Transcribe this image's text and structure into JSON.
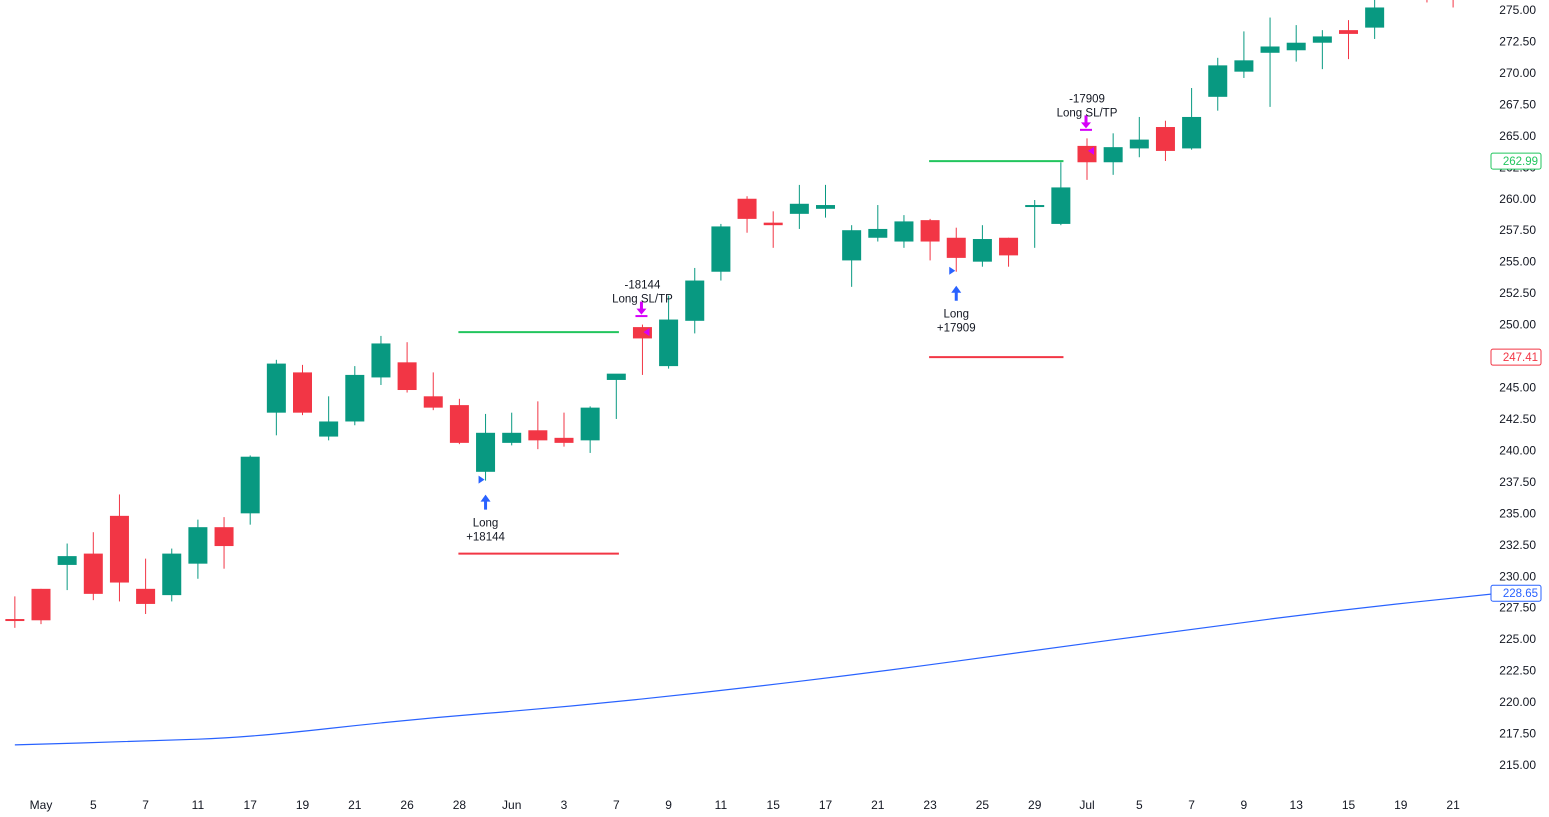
{
  "chart_data": {
    "type": "candlestick",
    "y_axis": {
      "range": [
        213.3,
        276.2
      ],
      "ticks": [
        "215.00",
        "217.50",
        "220.00",
        "222.50",
        "225.00",
        "227.50",
        "230.00",
        "232.50",
        "235.00",
        "237.50",
        "240.00",
        "242.50",
        "245.00",
        "247.50",
        "250.00",
        "252.50",
        "255.00",
        "257.50",
        "260.00",
        "262.50",
        "265.00",
        "267.50",
        "270.00",
        "272.50",
        "275.00"
      ]
    },
    "x_axis": {
      "labels": [
        {
          "i": 0,
          "text": "May"
        },
        {
          "i": 2,
          "text": "5"
        },
        {
          "i": 4,
          "text": "7"
        },
        {
          "i": 6,
          "text": "11"
        },
        {
          "i": 8,
          "text": "17"
        },
        {
          "i": 10,
          "text": "19"
        },
        {
          "i": 12,
          "text": "21"
        },
        {
          "i": 14,
          "text": "26"
        },
        {
          "i": 16,
          "text": "28"
        },
        {
          "i": 18,
          "text": "Jun"
        },
        {
          "i": 20,
          "text": "3"
        },
        {
          "i": 22,
          "text": "7"
        },
        {
          "i": 24,
          "text": "9"
        },
        {
          "i": 26,
          "text": "11"
        },
        {
          "i": 28,
          "text": "15"
        },
        {
          "i": 30,
          "text": "17"
        },
        {
          "i": 32,
          "text": "21"
        },
        {
          "i": 34,
          "text": "23"
        },
        {
          "i": 36,
          "text": "25"
        },
        {
          "i": 38,
          "text": "29"
        },
        {
          "i": 40,
          "text": "Jul"
        },
        {
          "i": 42,
          "text": "5"
        },
        {
          "i": 44,
          "text": "7"
        },
        {
          "i": 46,
          "text": "9"
        },
        {
          "i": 48,
          "text": "13"
        },
        {
          "i": 50,
          "text": "15"
        },
        {
          "i": 52,
          "text": "19"
        },
        {
          "i": 54,
          "text": "21"
        }
      ]
    },
    "candles": [
      {
        "i": -1,
        "o": 226.6,
        "h": 228.4,
        "l": 225.9,
        "c": 226.5
      },
      {
        "i": 0,
        "o": 229.0,
        "h": 229.0,
        "l": 226.2,
        "c": 226.5
      },
      {
        "i": 1,
        "o": 230.9,
        "h": 232.6,
        "l": 228.9,
        "c": 231.6
      },
      {
        "i": 2,
        "o": 231.8,
        "h": 233.5,
        "l": 228.1,
        "c": 228.6
      },
      {
        "i": 3,
        "o": 234.8,
        "h": 236.5,
        "l": 228.0,
        "c": 229.5
      },
      {
        "i": 4,
        "o": 229.0,
        "h": 231.4,
        "l": 227.0,
        "c": 227.8
      },
      {
        "i": 5,
        "o": 228.5,
        "h": 232.2,
        "l": 228.0,
        "c": 231.8
      },
      {
        "i": 6,
        "o": 231.0,
        "h": 234.5,
        "l": 229.8,
        "c": 233.9
      },
      {
        "i": 7,
        "o": 233.9,
        "h": 234.7,
        "l": 230.6,
        "c": 232.4
      },
      {
        "i": 8,
        "o": 235.0,
        "h": 239.6,
        "l": 234.1,
        "c": 239.5
      },
      {
        "i": 9,
        "o": 243.0,
        "h": 247.2,
        "l": 241.2,
        "c": 246.9
      },
      {
        "i": 10,
        "o": 246.2,
        "h": 246.8,
        "l": 242.8,
        "c": 243.0
      },
      {
        "i": 11,
        "o": 241.1,
        "h": 244.3,
        "l": 240.8,
        "c": 242.3
      },
      {
        "i": 12,
        "o": 242.3,
        "h": 246.7,
        "l": 242.0,
        "c": 246.0
      },
      {
        "i": 13,
        "o": 245.8,
        "h": 249.1,
        "l": 245.2,
        "c": 248.5
      },
      {
        "i": 14,
        "o": 247.0,
        "h": 248.6,
        "l": 244.6,
        "c": 244.8
      },
      {
        "i": 15,
        "o": 244.3,
        "h": 246.2,
        "l": 243.2,
        "c": 243.4
      },
      {
        "i": 16,
        "o": 243.6,
        "h": 244.1,
        "l": 240.5,
        "c": 240.6
      },
      {
        "i": 17,
        "o": 238.3,
        "h": 242.9,
        "l": 237.6,
        "c": 241.4
      },
      {
        "i": 18,
        "o": 240.6,
        "h": 243.0,
        "l": 240.4,
        "c": 241.4
      },
      {
        "i": 19,
        "o": 241.6,
        "h": 243.9,
        "l": 240.1,
        "c": 240.8
      },
      {
        "i": 20,
        "o": 241.0,
        "h": 243.0,
        "l": 240.3,
        "c": 240.6
      },
      {
        "i": 21,
        "o": 240.8,
        "h": 243.5,
        "l": 239.8,
        "c": 243.4
      },
      {
        "i": 22,
        "o": 245.6,
        "h": 246.0,
        "l": 242.5,
        "c": 246.1
      },
      {
        "i": 23,
        "o": 249.8,
        "h": 250.0,
        "l": 246.0,
        "c": 248.9
      },
      {
        "i": 24,
        "o": 246.7,
        "h": 252.3,
        "l": 246.5,
        "c": 250.4
      },
      {
        "i": 25,
        "o": 250.3,
        "h": 254.5,
        "l": 249.3,
        "c": 253.5
      },
      {
        "i": 26,
        "o": 254.2,
        "h": 258.0,
        "l": 253.5,
        "c": 257.8
      },
      {
        "i": 27,
        "o": 260.0,
        "h": 260.2,
        "l": 257.3,
        "c": 258.4
      },
      {
        "i": 28,
        "o": 258.1,
        "h": 259.0,
        "l": 256.1,
        "c": 257.9
      },
      {
        "i": 29,
        "o": 258.8,
        "h": 261.1,
        "l": 257.6,
        "c": 259.6
      },
      {
        "i": 30,
        "o": 259.2,
        "h": 261.1,
        "l": 258.5,
        "c": 259.5
      },
      {
        "i": 31,
        "o": 255.1,
        "h": 257.9,
        "l": 253.0,
        "c": 257.5
      },
      {
        "i": 32,
        "o": 256.9,
        "h": 259.5,
        "l": 256.6,
        "c": 257.6
      },
      {
        "i": 33,
        "o": 256.6,
        "h": 258.7,
        "l": 256.1,
        "c": 258.2
      },
      {
        "i": 34,
        "o": 258.3,
        "h": 258.4,
        "l": 255.1,
        "c": 256.6
      },
      {
        "i": 35,
        "o": 256.9,
        "h": 257.7,
        "l": 254.2,
        "c": 255.3
      },
      {
        "i": 36,
        "o": 255.0,
        "h": 257.9,
        "l": 254.6,
        "c": 256.8
      },
      {
        "i": 37,
        "o": 256.9,
        "h": 256.9,
        "l": 254.6,
        "c": 255.5
      },
      {
        "i": 38,
        "o": 259.4,
        "h": 259.9,
        "l": 256.1,
        "c": 259.5
      },
      {
        "i": 39,
        "o": 258.0,
        "h": 262.9,
        "l": 257.9,
        "c": 260.9
      },
      {
        "i": 40,
        "o": 264.2,
        "h": 264.8,
        "l": 261.5,
        "c": 262.9
      },
      {
        "i": 41,
        "o": 262.9,
        "h": 265.2,
        "l": 261.9,
        "c": 264.1
      },
      {
        "i": 42,
        "o": 264.0,
        "h": 266.5,
        "l": 263.3,
        "c": 264.7
      },
      {
        "i": 43,
        "o": 265.7,
        "h": 266.2,
        "l": 263.0,
        "c": 263.8
      },
      {
        "i": 44,
        "o": 264.0,
        "h": 268.8,
        "l": 263.9,
        "c": 266.5
      },
      {
        "i": 45,
        "o": 268.1,
        "h": 271.2,
        "l": 267.0,
        "c": 270.6
      },
      {
        "i": 46,
        "o": 270.1,
        "h": 273.3,
        "l": 269.6,
        "c": 271.0
      },
      {
        "i": 47,
        "o": 271.6,
        "h": 274.4,
        "l": 267.3,
        "c": 272.1
      },
      {
        "i": 48,
        "o": 271.8,
        "h": 273.8,
        "l": 270.9,
        "c": 272.4
      },
      {
        "i": 49,
        "o": 272.4,
        "h": 273.4,
        "l": 270.3,
        "c": 272.9
      },
      {
        "i": 50,
        "o": 273.4,
        "h": 274.2,
        "l": 271.1,
        "c": 273.1
      },
      {
        "i": 51,
        "o": 273.6,
        "h": 276.0,
        "l": 272.7,
        "c": 275.2
      },
      {
        "i": 52,
        "o": 276.2,
        "h": 277.0,
        "l": 275.8,
        "c": 276.0
      },
      {
        "i": 53,
        "o": 276.5,
        "h": 277.0,
        "l": 275.6,
        "c": 276.4
      },
      {
        "i": 54,
        "o": 276.6,
        "h": 276.9,
        "l": 275.2,
        "c": 276.5
      }
    ],
    "moving_average": {
      "points": [
        {
          "i": -1,
          "v": 216.6
        },
        {
          "i": 4,
          "v": 216.9
        },
        {
          "i": 8,
          "v": 217.2
        },
        {
          "i": 14,
          "v": 218.6
        },
        {
          "i": 20,
          "v": 219.6
        },
        {
          "i": 26,
          "v": 220.9
        },
        {
          "i": 32,
          "v": 222.4
        },
        {
          "i": 38,
          "v": 224.1
        },
        {
          "i": 44,
          "v": 225.8
        },
        {
          "i": 50,
          "v": 227.4
        },
        {
          "i": 56,
          "v": 228.7
        }
      ],
      "last": "228.65",
      "color": "#2962ff"
    },
    "trades": [
      {
        "entry_i": 17,
        "exit_i": 23,
        "entry_label": "Long",
        "entry_value": "+18144",
        "exit_label": "Long SL/TP",
        "exit_value": "-18144",
        "take_profit": 249.4,
        "stop_loss": 231.8
      },
      {
        "entry_i": 35,
        "exit_i": 40,
        "entry_label": "Long",
        "entry_value": "+17909",
        "exit_label": "Long SL/TP",
        "exit_value": "-17909",
        "take_profit": 262.99,
        "stop_loss": 247.41
      }
    ],
    "price_tags": [
      {
        "text": "262.99",
        "value": 262.99,
        "color": "#22c55e"
      },
      {
        "text": "247.41",
        "value": 247.41,
        "color": "#f23645"
      },
      {
        "text": "228.65",
        "value": 228.65,
        "color": "#2962ff"
      }
    ],
    "colors": {
      "up": "#089981",
      "down": "#f23645",
      "take_profit_line": "#22c55e",
      "stop_loss_line": "#f23645",
      "entry_arrow": "#2962ff",
      "exit_arrow": "#d500f9"
    }
  }
}
